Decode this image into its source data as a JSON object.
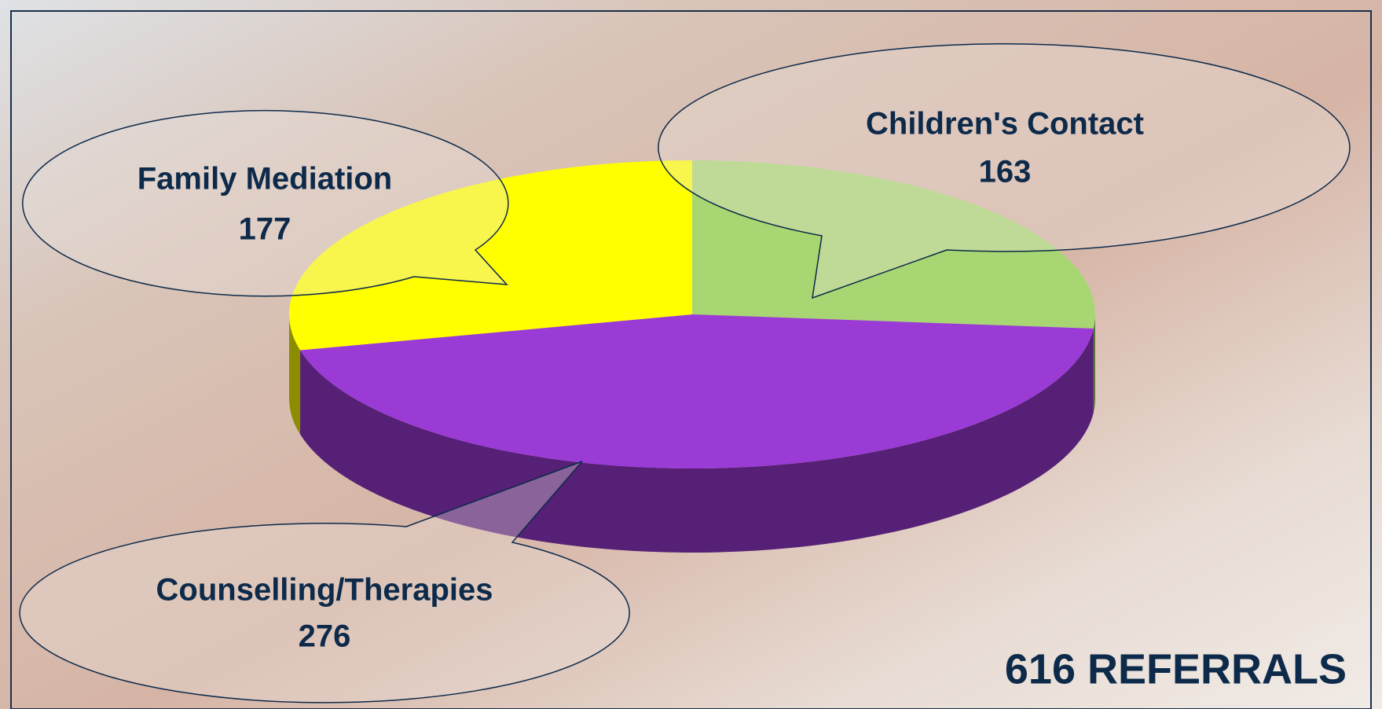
{
  "chart_data": {
    "type": "pie",
    "categories": [
      "Children's Contact",
      "Counselling/Therapies",
      "Family Mediation"
    ],
    "values": [
      163,
      276,
      177
    ],
    "colors": [
      "#a8d672",
      "#9b3bd6",
      "#ffff00"
    ],
    "total_label": "616 REFERRALS"
  }
}
